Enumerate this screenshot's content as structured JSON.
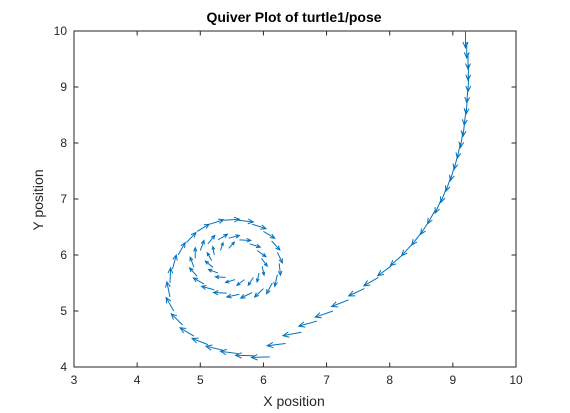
{
  "chart_data": {
    "type": "scatter",
    "subtype": "quiver",
    "title": "Quiver Plot of turtle1/pose",
    "xlabel": "X position",
    "ylabel": "Y position",
    "xlim": [
      3,
      10
    ],
    "ylim": [
      4,
      10
    ],
    "xticks": [
      3,
      4,
      5,
      6,
      7,
      8,
      9,
      10
    ],
    "yticks": [
      4,
      5,
      6,
      7,
      8,
      9,
      10
    ],
    "grid": false,
    "box": true,
    "series": [
      {
        "color": "#0072BD",
        "points": [
          {
            "x": 9.2,
            "y": 10.0,
            "u": 0.0,
            "v": -0.3
          },
          {
            "x": 9.22,
            "y": 9.8,
            "u": 0.0,
            "v": -0.28
          },
          {
            "x": 9.24,
            "y": 9.6,
            "u": 0.0,
            "v": -0.28
          },
          {
            "x": 9.25,
            "y": 9.4,
            "u": -0.01,
            "v": -0.28
          },
          {
            "x": 9.25,
            "y": 9.2,
            "u": -0.01,
            "v": -0.28
          },
          {
            "x": 9.24,
            "y": 9.0,
            "u": -0.02,
            "v": -0.28
          },
          {
            "x": 9.23,
            "y": 8.8,
            "u": -0.02,
            "v": -0.28
          },
          {
            "x": 9.21,
            "y": 8.6,
            "u": -0.03,
            "v": -0.28
          },
          {
            "x": 9.19,
            "y": 8.4,
            "u": -0.03,
            "v": -0.28
          },
          {
            "x": 9.16,
            "y": 8.2,
            "u": -0.04,
            "v": -0.28
          },
          {
            "x": 9.12,
            "y": 8.0,
            "u": -0.05,
            "v": -0.27
          },
          {
            "x": 9.08,
            "y": 7.8,
            "u": -0.06,
            "v": -0.27
          },
          {
            "x": 9.03,
            "y": 7.6,
            "u": -0.07,
            "v": -0.27
          },
          {
            "x": 8.97,
            "y": 7.4,
            "u": -0.08,
            "v": -0.26
          },
          {
            "x": 8.9,
            "y": 7.2,
            "u": -0.09,
            "v": -0.26
          },
          {
            "x": 8.82,
            "y": 7.0,
            "u": -0.1,
            "v": -0.25
          },
          {
            "x": 8.72,
            "y": 6.8,
            "u": -0.12,
            "v": -0.24
          },
          {
            "x": 8.62,
            "y": 6.6,
            "u": -0.13,
            "v": -0.23
          },
          {
            "x": 8.5,
            "y": 6.4,
            "u": -0.15,
            "v": -0.22
          },
          {
            "x": 8.36,
            "y": 6.2,
            "u": -0.17,
            "v": -0.21
          },
          {
            "x": 8.2,
            "y": 6.0,
            "u": -0.19,
            "v": -0.19
          },
          {
            "x": 8.02,
            "y": 5.8,
            "u": -0.21,
            "v": -0.17
          },
          {
            "x": 7.82,
            "y": 5.6,
            "u": -0.23,
            "v": -0.15
          },
          {
            "x": 7.6,
            "y": 5.4,
            "u": -0.25,
            "v": -0.13
          },
          {
            "x": 7.35,
            "y": 5.2,
            "u": -0.27,
            "v": -0.12
          },
          {
            "x": 7.1,
            "y": 5.0,
            "u": -0.28,
            "v": -0.11
          },
          {
            "x": 6.85,
            "y": 4.82,
            "u": -0.29,
            "v": -0.09
          },
          {
            "x": 6.6,
            "y": 4.62,
            "u": -0.29,
            "v": -0.06
          },
          {
            "x": 6.35,
            "y": 4.42,
            "u": -0.29,
            "v": -0.04
          },
          {
            "x": 6.1,
            "y": 4.18,
            "u": -0.29,
            "v": -0.01
          },
          {
            "x": 5.85,
            "y": 4.2,
            "u": -0.29,
            "v": 0.01
          },
          {
            "x": 5.6,
            "y": 4.24,
            "u": -0.28,
            "v": 0.04
          },
          {
            "x": 5.36,
            "y": 4.3,
            "u": -0.27,
            "v": 0.07
          },
          {
            "x": 5.12,
            "y": 4.4,
            "u": -0.25,
            "v": 0.11
          },
          {
            "x": 4.9,
            "y": 4.55,
            "u": -0.22,
            "v": 0.15
          },
          {
            "x": 4.72,
            "y": 4.75,
            "u": -0.18,
            "v": 0.2
          },
          {
            "x": 4.58,
            "y": 5.0,
            "u": -0.12,
            "v": 0.24
          },
          {
            "x": 4.52,
            "y": 5.25,
            "u": -0.05,
            "v": 0.27
          },
          {
            "x": 4.52,
            "y": 5.5,
            "u": 0.01,
            "v": 0.27
          },
          {
            "x": 4.56,
            "y": 5.75,
            "u": 0.06,
            "v": 0.25
          },
          {
            "x": 4.65,
            "y": 6.0,
            "u": 0.11,
            "v": 0.22
          },
          {
            "x": 4.78,
            "y": 6.22,
            "u": 0.15,
            "v": 0.18
          },
          {
            "x": 4.95,
            "y": 6.42,
            "u": 0.19,
            "v": 0.13
          },
          {
            "x": 5.15,
            "y": 6.55,
            "u": 0.22,
            "v": 0.08
          },
          {
            "x": 5.38,
            "y": 6.62,
            "u": 0.24,
            "v": 0.02
          },
          {
            "x": 5.6,
            "y": 6.62,
            "u": 0.24,
            "v": -0.03
          },
          {
            "x": 5.82,
            "y": 6.55,
            "u": 0.22,
            "v": -0.08
          },
          {
            "x": 6.0,
            "y": 6.42,
            "u": 0.18,
            "v": -0.12
          },
          {
            "x": 6.13,
            "y": 6.25,
            "u": 0.13,
            "v": -0.16
          },
          {
            "x": 6.22,
            "y": 6.05,
            "u": 0.08,
            "v": -0.19
          },
          {
            "x": 6.25,
            "y": 5.85,
            "u": 0.02,
            "v": -0.21
          },
          {
            "x": 6.22,
            "y": 5.65,
            "u": -0.04,
            "v": -0.21
          },
          {
            "x": 6.14,
            "y": 5.5,
            "u": -0.09,
            "v": -0.19
          },
          {
            "x": 6.0,
            "y": 5.4,
            "u": -0.14,
            "v": -0.15
          },
          {
            "x": 5.82,
            "y": 5.33,
            "u": -0.18,
            "v": -0.1
          },
          {
            "x": 5.62,
            "y": 5.3,
            "u": -0.2,
            "v": -0.05
          },
          {
            "x": 5.42,
            "y": 5.32,
            "u": -0.21,
            "v": 0.01
          },
          {
            "x": 5.22,
            "y": 5.38,
            "u": -0.2,
            "v": 0.06
          },
          {
            "x": 5.06,
            "y": 5.48,
            "u": -0.17,
            "v": 0.11
          },
          {
            "x": 4.95,
            "y": 5.62,
            "u": -0.12,
            "v": 0.15
          },
          {
            "x": 4.9,
            "y": 5.78,
            "u": -0.06,
            "v": 0.18
          },
          {
            "x": 4.92,
            "y": 5.94,
            "u": 0.0,
            "v": 0.19
          },
          {
            "x": 5.0,
            "y": 6.08,
            "u": 0.06,
            "v": 0.18
          },
          {
            "x": 5.12,
            "y": 6.2,
            "u": 0.11,
            "v": 0.15
          },
          {
            "x": 5.28,
            "y": 6.27,
            "u": 0.15,
            "v": 0.1
          },
          {
            "x": 5.45,
            "y": 6.3,
            "u": 0.17,
            "v": 0.05
          },
          {
            "x": 5.62,
            "y": 6.27,
            "u": 0.18,
            "v": -0.01
          },
          {
            "x": 5.78,
            "y": 6.2,
            "u": 0.17,
            "v": -0.06
          },
          {
            "x": 5.9,
            "y": 6.08,
            "u": 0.14,
            "v": -0.11
          },
          {
            "x": 5.97,
            "y": 5.94,
            "u": 0.09,
            "v": -0.14
          },
          {
            "x": 5.98,
            "y": 5.8,
            "u": 0.03,
            "v": -0.16
          },
          {
            "x": 5.93,
            "y": 5.68,
            "u": -0.03,
            "v": -0.16
          },
          {
            "x": 5.84,
            "y": 5.6,
            "u": -0.08,
            "v": -0.14
          },
          {
            "x": 5.7,
            "y": 5.56,
            "u": -0.12,
            "v": -0.1
          },
          {
            "x": 5.55,
            "y": 5.56,
            "u": -0.15,
            "v": -0.05
          },
          {
            "x": 5.4,
            "y": 5.6,
            "u": -0.16,
            "v": 0.01
          },
          {
            "x": 5.28,
            "y": 5.68,
            "u": -0.15,
            "v": 0.06
          },
          {
            "x": 5.2,
            "y": 5.78,
            "u": -0.12,
            "v": 0.11
          },
          {
            "x": 5.18,
            "y": 5.9,
            "u": -0.07,
            "v": 0.14
          },
          {
            "x": 5.22,
            "y": 6.0,
            "u": -0.02,
            "v": 0.15
          },
          {
            "x": 5.32,
            "y": 6.08,
            "u": 0.04,
            "v": 0.14
          },
          {
            "x": 5.45,
            "y": 6.12,
            "u": 0.09,
            "v": 0.11
          }
        ]
      }
    ]
  }
}
